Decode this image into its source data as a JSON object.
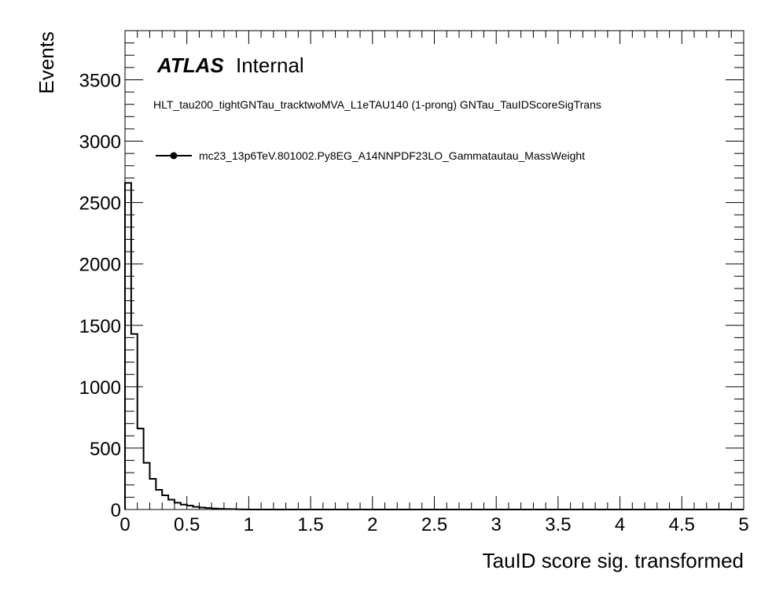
{
  "chart_data": {
    "type": "histogram-step",
    "brand": {
      "bold": "ATLAS",
      "normal": "Internal"
    },
    "subtitle": "HLT_tau200_tightGNTau_tracktwoMVA_L1eTAU140 (1-prong) GNTau_TauIDScoreSigTrans",
    "xlabel": "TauID score sig. transformed",
    "ylabel": "Events",
    "xlim": [
      0,
      5
    ],
    "ylim": [
      0,
      3900
    ],
    "x_ticks": [
      "0",
      "0.5",
      "1",
      "1.5",
      "2",
      "2.5",
      "3",
      "3.5",
      "4",
      "4.5",
      "5"
    ],
    "y_ticks": [
      "0",
      "500",
      "1000",
      "1500",
      "2000",
      "2500",
      "3000",
      "3500"
    ],
    "legend": {
      "position": "top-left",
      "entries": [
        {
          "name": "mc23_13p6TeV.801002.Py8EG_A14NNPDF23LO_Gammatautau_MassWeight",
          "style": "line-marker"
        }
      ]
    },
    "grid": false,
    "bin_width": 0.05,
    "series": [
      {
        "name": "mc23_13p6TeV.801002.Py8EG_A14NNPDF23LO_Gammatautau_MassWeight",
        "color": "#000000",
        "values": [
          2660,
          1430,
          660,
          380,
          250,
          160,
          115,
          80,
          55,
          40,
          32,
          22,
          16,
          12,
          8,
          6,
          4,
          3,
          2,
          1
        ]
      }
    ]
  }
}
